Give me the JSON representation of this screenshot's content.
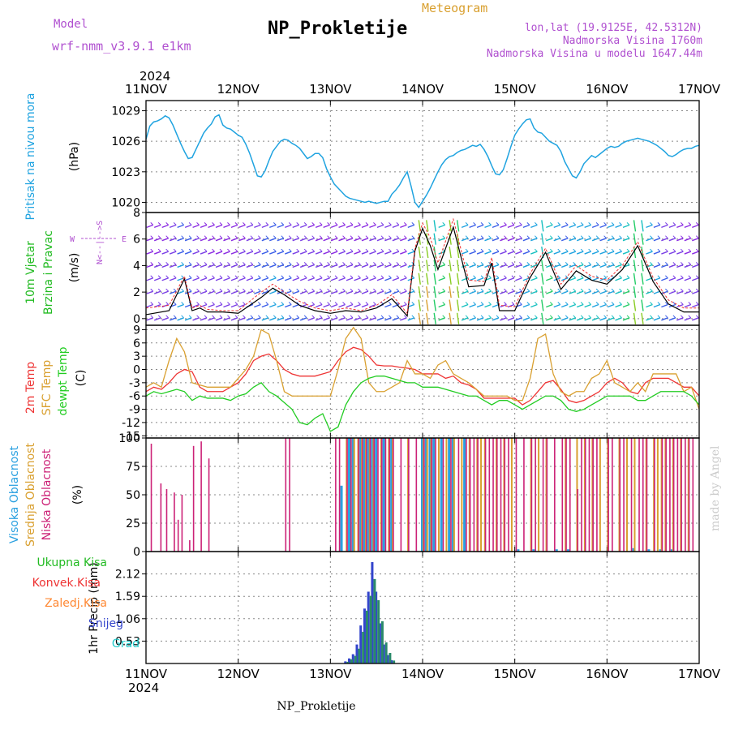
{
  "header": {
    "model_label": "Model",
    "model_name": "wrf-nmm_v3.9.1  e1km",
    "title": "NP_Prokletije",
    "subtitle": "Meteogram",
    "coords": "lon,lat (19.9125E, 42.5312N)",
    "elevation": "Nadmorska Visina 1760m",
    "model_elevation": "Nadmorska Visina u modelu 1647.44m",
    "watermark": "made by Angel",
    "footer_title": "NP_Prokletije",
    "year": "2024",
    "date_labels": [
      "11NOV",
      "12NOV",
      "13NOV",
      "14NOV",
      "15NOV",
      "16NOV",
      "17NOV"
    ]
  },
  "colors": {
    "pressure": "#1fa3e0",
    "wind_label": "#22bb22",
    "temp2m": "#ee3333",
    "sfc": "#d9a030",
    "dewpt": "#22cc22",
    "high_cloud": "#2aa0e0",
    "mid_cloud": "#d9a030",
    "low_cloud": "#cc2277",
    "purple": "#b050d0",
    "precip_total": "#22bb22",
    "precip_conv": "#ee3333",
    "precip_frz": "#ff8833",
    "precip_snow": "#3344cc",
    "precip_grad": "#22cccc"
  },
  "chart_data": [
    {
      "type": "line",
      "name": "pressure",
      "ylabel_top": "Pritisak na nivou mora",
      "ylabel_unit": "(hPa)",
      "yticks": [
        1020,
        1023,
        1026,
        1029
      ],
      "ylim": [
        1019,
        1030
      ],
      "xlim_hours": [
        0,
        144
      ],
      "x": [
        0,
        1,
        2,
        3,
        4,
        5,
        6,
        7,
        8,
        9,
        10,
        11,
        12,
        13,
        14,
        15,
        16,
        17,
        18,
        19,
        20,
        21,
        22,
        23,
        24,
        25,
        26,
        27,
        28,
        29,
        30,
        31,
        32,
        33,
        34,
        35,
        36,
        37,
        38,
        39,
        40,
        41,
        42,
        43,
        44,
        45,
        46,
        47,
        48,
        49,
        50,
        51,
        52,
        53,
        54,
        55,
        56,
        57,
        58,
        59,
        60,
        61,
        62,
        63,
        64,
        65,
        66,
        67,
        68,
        69,
        70,
        71,
        72,
        73,
        74,
        75,
        76,
        77,
        78,
        79,
        80,
        81,
        82,
        83,
        84,
        85,
        86,
        87,
        88,
        89,
        90,
        91,
        92,
        93,
        94,
        95,
        96,
        97,
        98,
        99,
        100,
        101,
        102,
        103,
        104,
        105,
        106,
        107,
        108,
        109,
        110,
        111,
        112,
        113,
        114,
        115,
        116,
        117,
        118,
        119,
        120,
        121,
        122,
        123,
        124,
        125,
        126,
        127,
        128,
        129,
        130,
        131,
        132,
        133,
        134,
        135,
        136,
        137,
        138,
        139,
        140,
        141,
        142,
        143,
        144
      ],
      "values": [
        1026.2,
        1027.5,
        1027.9,
        1028.0,
        1028.2,
        1028.5,
        1028.3,
        1027.6,
        1026.7,
        1025.8,
        1025.0,
        1024.3,
        1024.4,
        1025.2,
        1026.0,
        1026.8,
        1027.3,
        1027.7,
        1028.4,
        1028.6,
        1027.6,
        1027.3,
        1027.2,
        1026.9,
        1026.6,
        1026.4,
        1025.7,
        1024.8,
        1023.7,
        1022.6,
        1022.5,
        1023.1,
        1024.1,
        1025.0,
        1025.5,
        1026.0,
        1026.2,
        1026.1,
        1025.8,
        1025.6,
        1025.3,
        1024.8,
        1024.3,
        1024.5,
        1024.8,
        1024.8,
        1024.4,
        1023.3,
        1022.5,
        1021.8,
        1021.4,
        1021.0,
        1020.6,
        1020.4,
        1020.3,
        1020.2,
        1020.1,
        1020.0,
        1020.1,
        1020.0,
        1019.9,
        1020.0,
        1020.1,
        1020.1,
        1020.8,
        1021.2,
        1021.7,
        1022.4,
        1023.0,
        1021.6,
        1020.0,
        1019.5,
        1020.1,
        1020.7,
        1021.4,
        1022.2,
        1023.0,
        1023.7,
        1024.2,
        1024.5,
        1024.6,
        1024.9,
        1025.1,
        1025.2,
        1025.4,
        1025.6,
        1025.5,
        1025.7,
        1025.2,
        1024.5,
        1023.6,
        1022.8,
        1022.7,
        1023.2,
        1024.3,
        1025.5,
        1026.6,
        1027.2,
        1027.7,
        1028.1,
        1028.2,
        1027.3,
        1026.9,
        1026.8,
        1026.4,
        1026.0,
        1025.8,
        1025.6,
        1025.0,
        1024.0,
        1023.3,
        1022.6,
        1022.4,
        1023.0,
        1023.8,
        1024.2,
        1024.6,
        1024.4,
        1024.7,
        1025.0,
        1025.3,
        1025.5,
        1025.4,
        1025.5,
        1025.8,
        1026.0,
        1026.1,
        1026.2,
        1026.3,
        1026.2,
        1026.1,
        1026.0,
        1025.8,
        1025.6,
        1025.3,
        1025.0,
        1024.6,
        1024.5,
        1024.7,
        1025.0,
        1025.2,
        1025.3,
        1025.3,
        1025.5,
        1025.6
      ]
    },
    {
      "type": "scatter",
      "name": "wind",
      "ylabel_top": "10m Vjetar",
      "ylabel_mid": "Brzina i Pravac",
      "ylabel_unit": "(m/s)",
      "compass_ns": "N<--|-->S",
      "compass_w": "W",
      "compass_e": "E",
      "yticks": [
        0,
        2,
        4,
        6,
        8
      ],
      "ylim": [
        -0.5,
        8
      ],
      "speed_hours": [
        0,
        6,
        10,
        12,
        14,
        16,
        20,
        24,
        30,
        33,
        36,
        40,
        44,
        48,
        52,
        56,
        60,
        64,
        68,
        70,
        72,
        74,
        76,
        80,
        84,
        88,
        90,
        92,
        96,
        100,
        104,
        108,
        112,
        116,
        120,
        124,
        128,
        132,
        136,
        140,
        144
      ],
      "speed_values": [
        0.3,
        0.6,
        3.0,
        0.6,
        0.8,
        0.5,
        0.5,
        0.4,
        1.6,
        2.3,
        1.8,
        1.0,
        0.6,
        0.4,
        0.6,
        0.5,
        0.8,
        1.5,
        0.2,
        5.1,
        6.8,
        5.5,
        3.7,
        6.9,
        2.4,
        2.5,
        4.2,
        0.6,
        0.6,
        3.1,
        5.0,
        2.2,
        3.6,
        2.9,
        2.6,
        3.7,
        5.5,
        2.8,
        1.1,
        0.5,
        0.5
      ],
      "gust_hours": [
        0,
        6,
        10,
        12,
        14,
        16,
        20,
        24,
        30,
        33,
        36,
        40,
        44,
        48,
        52,
        56,
        60,
        64,
        68,
        70,
        72,
        74,
        76,
        80,
        84,
        88,
        90,
        92,
        96,
        100,
        104,
        108,
        112,
        116,
        120,
        124,
        128,
        132,
        136,
        140,
        144
      ],
      "gust_values": [
        0.8,
        1.0,
        3.2,
        0.8,
        1.0,
        0.7,
        0.6,
        0.6,
        2.0,
        2.6,
        2.0,
        1.3,
        0.8,
        0.6,
        0.8,
        0.6,
        1.0,
        1.8,
        0.4,
        5.3,
        7.2,
        6.1,
        4.2,
        7.5,
        2.9,
        2.8,
        4.6,
        1.0,
        0.9,
        3.4,
        5.3,
        2.6,
        4.0,
        3.2,
        2.9,
        4.0,
        5.8,
        3.1,
        1.4,
        0.8,
        0.8
      ],
      "arrow_columns": 72
    },
    {
      "type": "line",
      "name": "temperature",
      "ylabel_2m": "2m Temp",
      "ylabel_sfc": "SFC Temp",
      "ylabel_dew": "dewpt Temp",
      "ylabel_unit": "(C)",
      "yticks": [
        -15,
        -12,
        -9,
        -6,
        -3,
        0,
        3,
        6,
        9
      ],
      "ylim": [
        -15.5,
        10
      ],
      "x": [
        0,
        2,
        4,
        6,
        8,
        10,
        12,
        14,
        16,
        18,
        20,
        22,
        24,
        26,
        28,
        30,
        32,
        34,
        36,
        38,
        40,
        42,
        44,
        46,
        48,
        50,
        52,
        54,
        56,
        58,
        60,
        62,
        64,
        66,
        68,
        70,
        72,
        74,
        76,
        78,
        80,
        82,
        84,
        86,
        88,
        90,
        92,
        94,
        96,
        98,
        100,
        102,
        104,
        106,
        108,
        110,
        112,
        114,
        116,
        118,
        120,
        122,
        124,
        126,
        128,
        130,
        132,
        134,
        136,
        138,
        140,
        142,
        144
      ],
      "series": [
        {
          "name": "2m Temp",
          "color": "#ee3333",
          "values": [
            -5,
            -4,
            -4.5,
            -3,
            -1,
            0,
            -0.5,
            -4,
            -5,
            -5,
            -5,
            -4,
            -3,
            -1,
            2,
            3,
            3.5,
            2,
            0,
            -1,
            -1.5,
            -1.5,
            -1.5,
            -1,
            -0.5,
            2,
            4,
            5,
            4.5,
            3,
            1,
            0.8,
            0.8,
            0.5,
            0.3,
            0,
            -1,
            -1,
            -1,
            -2,
            -1.5,
            -3,
            -3.5,
            -4.5,
            -6.5,
            -6.5,
            -6.5,
            -6.5,
            -6.5,
            -8,
            -7,
            -5,
            -3,
            -2.5,
            -4.5,
            -7,
            -7.5,
            -7,
            -6,
            -5,
            -3,
            -2,
            -3,
            -5,
            -5.5,
            -3,
            -2,
            -2,
            -2,
            -3,
            -4,
            -4,
            -6
          ]
        },
        {
          "name": "SFC Temp",
          "color": "#d9a030",
          "values": [
            -4,
            -3,
            -4,
            2,
            7,
            4,
            -3,
            -3.5,
            -4,
            -4,
            -4,
            -4,
            -2,
            0,
            3,
            9,
            8,
            2,
            -5,
            -6,
            -6,
            -6,
            -6,
            -6,
            -6,
            0,
            7,
            9.5,
            7,
            -3,
            -5,
            -5,
            -4,
            -3,
            2,
            -1,
            -1,
            -2,
            1,
            2,
            -1,
            -2,
            -3,
            -4.5,
            -6,
            -6,
            -6,
            -6,
            -7,
            -7,
            -2,
            7,
            8,
            -1,
            -5,
            -6,
            -5,
            -5,
            -2,
            -1,
            2,
            -3,
            -4,
            -5,
            -3,
            -5,
            -1,
            -1,
            -1,
            -1,
            -5,
            -4,
            -9
          ]
        },
        {
          "name": "dewpt Temp",
          "color": "#22cc22",
          "values": [
            -6,
            -5,
            -5.5,
            -5,
            -4.5,
            -5,
            -7,
            -6,
            -6.5,
            -6.5,
            -6.5,
            -7,
            -6,
            -5.5,
            -4,
            -3,
            -5,
            -6,
            -7.5,
            -9,
            -12,
            -12.5,
            -11,
            -10,
            -14,
            -13,
            -8,
            -5,
            -3,
            -2,
            -1.5,
            -1.5,
            -2,
            -2.5,
            -3,
            -3,
            -4,
            -4,
            -4,
            -4.5,
            -5,
            -5.5,
            -6,
            -6,
            -7,
            -8,
            -7,
            -7,
            -8,
            -9,
            -8,
            -7,
            -6,
            -6,
            -7,
            -9,
            -9.5,
            -9,
            -8,
            -7,
            -6,
            -6,
            -6,
            -6,
            -7,
            -7,
            -6,
            -5,
            -5,
            -5,
            -5,
            -6,
            -8
          ]
        }
      ]
    },
    {
      "type": "bar",
      "name": "clouds",
      "ylabel_high": "Visoka Oblacnost",
      "ylabel_mid": "Srednja Oblacnost",
      "ylabel_low": "Niska Oblacnost",
      "ylabel_unit": "(%)",
      "yticks": [
        0,
        25,
        50,
        75,
        100
      ],
      "ylim": [
        0,
        100
      ],
      "low": {
        "x": [
          1,
          3.5,
          5,
          7,
          8,
          9,
          11,
          12,
          14,
          16,
          36,
          37,
          49,
          50,
          52,
          53,
          55,
          56,
          57,
          58,
          59,
          60,
          61,
          62,
          63,
          64,
          66,
          68,
          70,
          72,
          74,
          75,
          77,
          79,
          81,
          83,
          84,
          85,
          86,
          88,
          89,
          90,
          91,
          92,
          93,
          94,
          96,
          98,
          100,
          101,
          103,
          104,
          106,
          108,
          109,
          110,
          112,
          113,
          114,
          115,
          116,
          117,
          120,
          121,
          123,
          124,
          126,
          128,
          129,
          130,
          132,
          134,
          135,
          136,
          137,
          138,
          139,
          140,
          141,
          142
        ],
        "values": [
          95,
          60,
          55,
          52,
          28,
          50,
          10,
          93,
          97,
          82,
          100,
          100,
          100,
          100,
          100,
          100,
          100,
          100,
          100,
          100,
          100,
          100,
          100,
          100,
          100,
          100,
          100,
          100,
          100,
          100,
          100,
          100,
          100,
          100,
          100,
          100,
          100,
          100,
          100,
          100,
          100,
          100,
          100,
          100,
          100,
          100,
          100,
          100,
          100,
          100,
          100,
          100,
          100,
          100,
          100,
          100,
          55,
          100,
          100,
          100,
          100,
          100,
          100,
          100,
          100,
          100,
          100,
          100,
          100,
          100,
          100,
          100,
          100,
          100,
          100,
          100,
          100,
          100,
          100,
          100
        ]
      },
      "mid": {
        "x": [
          52,
          54,
          55,
          56,
          57,
          58,
          59,
          61,
          63,
          64,
          68,
          72,
          73,
          74,
          76,
          78,
          80,
          82,
          84,
          86,
          87,
          88,
          91,
          93,
          95,
          100,
          102,
          104,
          109,
          112,
          114,
          116,
          118,
          120,
          123,
          125,
          127,
          130,
          132,
          133,
          134,
          135,
          137,
          139,
          141
        ],
        "values": [
          100,
          100,
          100,
          100,
          100,
          100,
          100,
          100,
          100,
          100,
          100,
          100,
          100,
          100,
          100,
          100,
          100,
          100,
          100,
          100,
          100,
          100,
          100,
          100,
          100,
          100,
          100,
          100,
          100,
          100,
          100,
          100,
          100,
          100,
          100,
          100,
          100,
          100,
          100,
          100,
          100,
          100,
          100,
          100,
          100
        ]
      },
      "high": {
        "x": [
          51,
          53,
          54,
          56,
          57,
          58,
          59,
          60,
          62,
          64,
          72,
          73,
          74,
          75,
          77,
          79,
          80,
          83,
          97,
          101,
          107,
          110,
          127,
          131,
          134,
          137
        ],
        "values": [
          58,
          100,
          100,
          100,
          100,
          100,
          100,
          100,
          100,
          100,
          100,
          100,
          100,
          100,
          100,
          100,
          100,
          100,
          2,
          2,
          2,
          2,
          3,
          2,
          2,
          2
        ]
      }
    },
    {
      "type": "bar",
      "name": "precip",
      "ylabel_top": "1hr Precip (mm)",
      "legend": [
        "Ukupna Kisa",
        "Konvek.Kisa",
        "Zaledj.Kisa",
        "Snijeg",
        "Grad"
      ],
      "yticks": [
        0.53,
        1.06,
        1.59,
        2.12
      ],
      "ylim": [
        0,
        2.65
      ],
      "snow": {
        "x": [
          52,
          53,
          54,
          55,
          56,
          57,
          58,
          59,
          60,
          61,
          62,
          63,
          64
        ],
        "values": [
          0.05,
          0.12,
          0.22,
          0.45,
          0.9,
          1.3,
          1.7,
          2.4,
          1.7,
          0.95,
          0.45,
          0.2,
          0.08
        ]
      },
      "total": {
        "x": [
          52,
          53,
          54,
          55,
          56,
          57,
          58,
          59,
          60,
          61,
          62,
          63,
          64
        ],
        "values": [
          0.04,
          0.1,
          0.18,
          0.35,
          0.75,
          1.25,
          1.6,
          2.0,
          1.5,
          1.0,
          0.5,
          0.25,
          0.07
        ]
      }
    }
  ]
}
